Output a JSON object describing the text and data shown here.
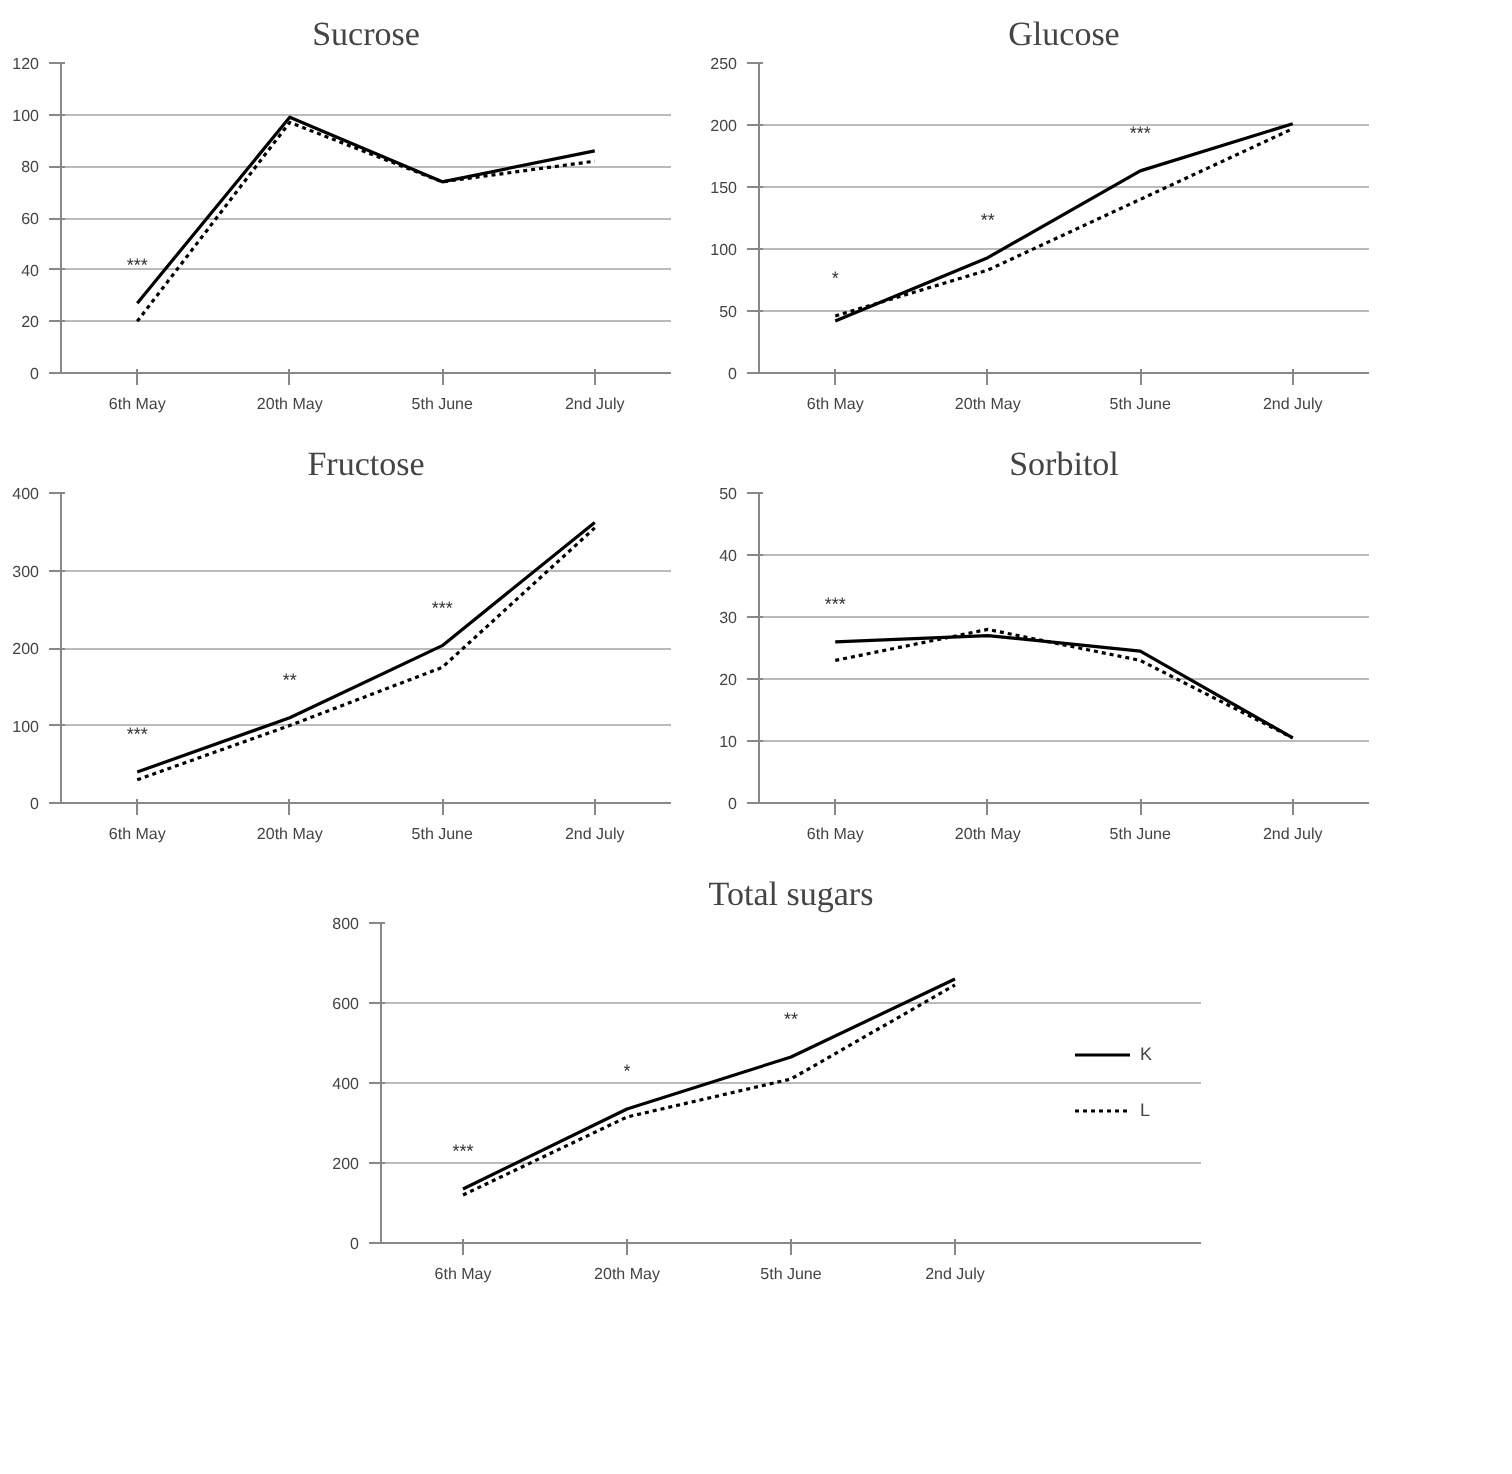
{
  "chart_data": [
    {
      "type": "line",
      "title": "Sucrose",
      "categories": [
        "6th May",
        "20th May",
        "5th June",
        "2nd July"
      ],
      "ylim": [
        0,
        120
      ],
      "yticks": [
        0,
        20,
        40,
        60,
        80,
        100,
        120
      ],
      "grid": "y",
      "series": [
        {
          "color": "#000000",
          "line_style": "solid",
          "values": [
            27,
            99,
            74,
            86
          ]
        },
        {
          "color": "#000000",
          "line_style": "dotted",
          "values": [
            20,
            97,
            74,
            82
          ]
        }
      ],
      "annotations": [
        "***"
      ]
    },
    {
      "type": "line",
      "title": "Glucose",
      "categories": [
        "6th May",
        "20th May",
        "5th June",
        "2nd July"
      ],
      "ylim": [
        0,
        250
      ],
      "yticks": [
        0,
        50,
        100,
        150,
        200,
        250
      ],
      "grid": "y",
      "series": [
        {
          "color": "#000000",
          "line_style": "solid",
          "values": [
            42,
            93,
            163,
            201
          ]
        },
        {
          "color": "#000000",
          "line_style": "dotted",
          "values": [
            46,
            83,
            140,
            197
          ]
        }
      ],
      "annotations": [
        "*",
        "**",
        "***"
      ]
    },
    {
      "type": "line",
      "title": "Fructose",
      "categories": [
        "6th May",
        "20th May",
        "5th June",
        "2nd July"
      ],
      "ylim": [
        0,
        400
      ],
      "yticks": [
        0,
        100,
        200,
        300,
        400
      ],
      "grid": "y",
      "series": [
        {
          "color": "#000000",
          "line_style": "solid",
          "values": [
            40,
            110,
            203,
            362
          ]
        },
        {
          "color": "#000000",
          "line_style": "dotted",
          "values": [
            30,
            100,
            175,
            355
          ]
        }
      ],
      "annotations": [
        "***",
        "**",
        "***"
      ]
    },
    {
      "type": "line",
      "title": "Sorbitol",
      "categories": [
        "6th May",
        "20th May",
        "5th June",
        "2nd July"
      ],
      "ylim": [
        0,
        50
      ],
      "yticks": [
        0,
        10,
        20,
        30,
        40,
        50
      ],
      "grid": "y",
      "series": [
        {
          "color": "#000000",
          "line_style": "solid",
          "values": [
            26,
            27,
            24.5,
            10.5
          ]
        },
        {
          "color": "#000000",
          "line_style": "dotted",
          "values": [
            23,
            28,
            23,
            10.5
          ]
        }
      ],
      "annotations": [
        "***"
      ]
    },
    {
      "type": "line",
      "title": "Total sugars",
      "categories": [
        "6th May",
        "20th May",
        "5th June",
        "2nd July"
      ],
      "ylim": [
        0,
        800
      ],
      "yticks": [
        0,
        200,
        400,
        600,
        800
      ],
      "grid": "y",
      "legend": "right",
      "series": [
        {
          "name": "K",
          "color": "#000000",
          "line_style": "solid",
          "values": [
            135,
            335,
            465,
            660
          ]
        },
        {
          "name": "L",
          "color": "#000000",
          "line_style": "dotted",
          "values": [
            120,
            315,
            410,
            645
          ]
        }
      ],
      "annotations": [
        "***",
        "*",
        "**"
      ]
    }
  ]
}
